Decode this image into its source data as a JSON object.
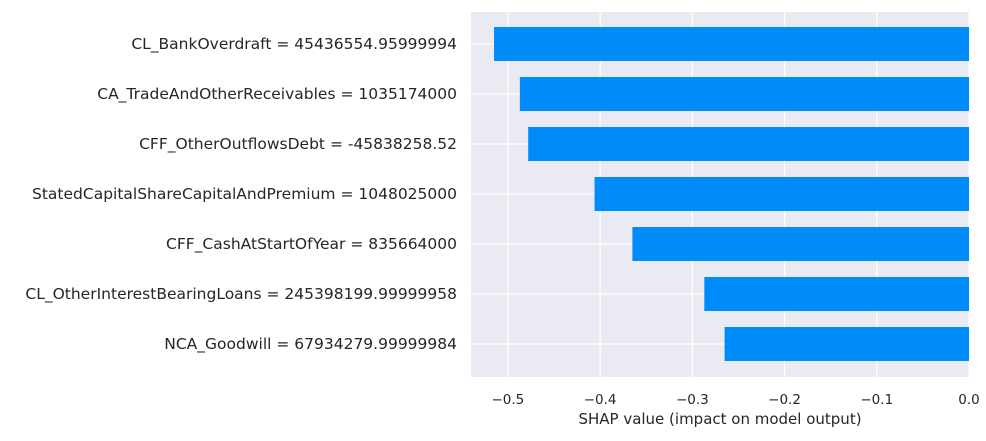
{
  "chart_data": {
    "type": "bar",
    "orientation": "horizontal",
    "title": "",
    "xlabel": "SHAP value (impact on model output)",
    "ylabel": "",
    "xlim": [
      -0.54,
      0.0
    ],
    "grid": true,
    "legend": "none",
    "colors": {
      "bar": "#008bfb",
      "plot_background": "#eaeaf2",
      "grid": "#ffffff"
    },
    "x_ticks": [
      {
        "value": -0.5,
        "label": "−0.5"
      },
      {
        "value": -0.4,
        "label": "−0.4"
      },
      {
        "value": -0.3,
        "label": "−0.3"
      },
      {
        "value": -0.2,
        "label": "−0.2"
      },
      {
        "value": -0.1,
        "label": "−0.1"
      },
      {
        "value": 0.0,
        "label": "0.0"
      }
    ],
    "categories": [
      "CL_BankOverdraft = 45436554.95999994",
      "CA_TradeAndOtherReceivables = 1035174000",
      "CFF_OtherOutflowsDebt = -45838258.52",
      "StatedCapitalShareCapitalAndPremium = 1048025000",
      "CFF_CashAtStartOfYear = 835664000",
      "CL_OtherInterestBearingLoans = 245398199.99999958",
      "NCA_Goodwill = 67934279.99999984"
    ],
    "values": [
      -0.515,
      -0.487,
      -0.478,
      -0.406,
      -0.365,
      -0.287,
      -0.265
    ]
  }
}
